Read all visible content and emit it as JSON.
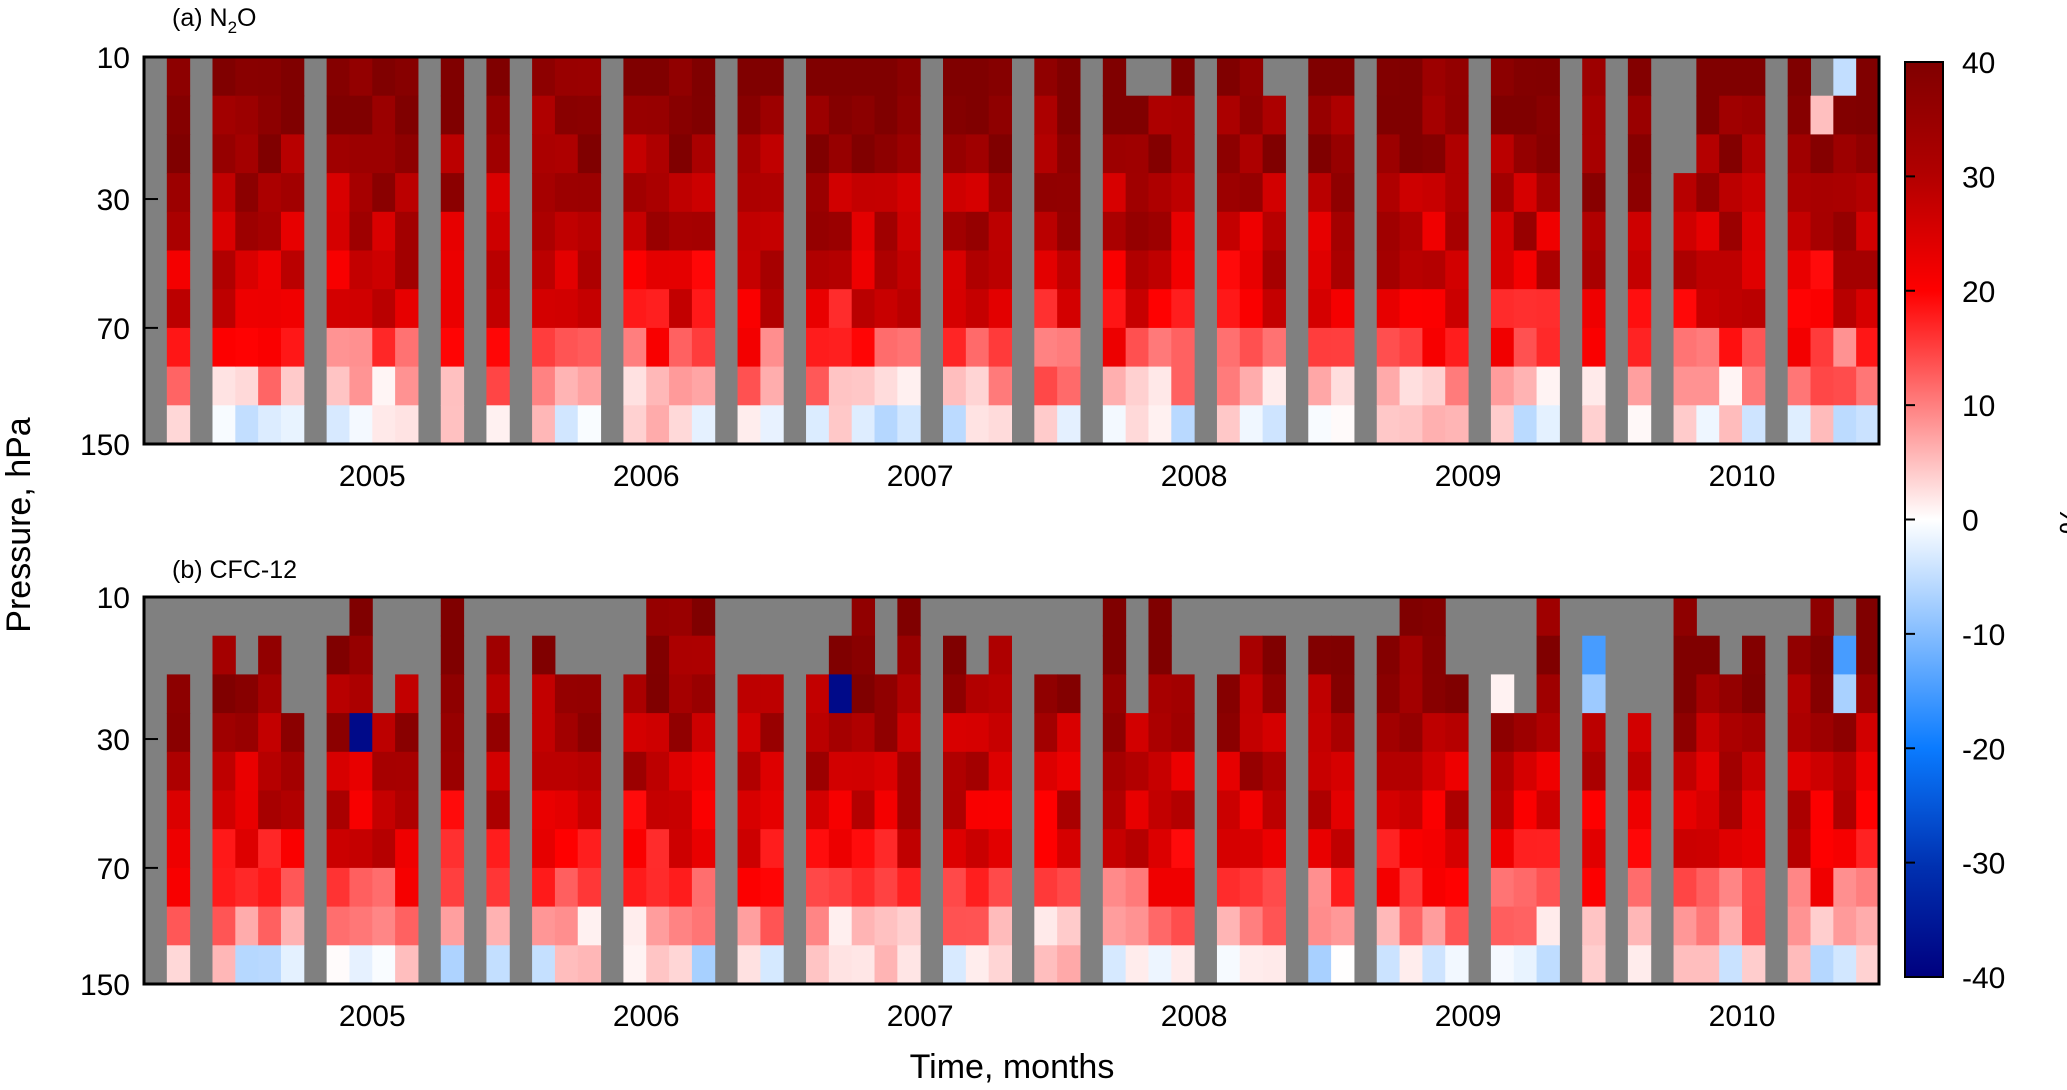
{
  "figure": {
    "y_axis_label": "Pressure, hPa",
    "x_axis_label": "Time, months",
    "colorbar": {
      "unit_label": "%",
      "ticks": [
        "40",
        "30",
        "20",
        "10",
        "0",
        "-10",
        "-20",
        "-30",
        "-40"
      ],
      "min": -40,
      "max": 40,
      "colors": {
        "negative_end": "#00007f",
        "mid_negative": "#0a7bff",
        "zero": "#ffffff",
        "mid_positive": "#ff0000",
        "positive_end": "#800000"
      }
    },
    "missing_color": "#808080"
  },
  "chart_data": [
    {
      "type": "heatmap",
      "title": "(a) N2O",
      "title_prefix": "(a) N",
      "title_sub": "2",
      "title_suffix": "O",
      "ylabel": "Pressure, hPa",
      "yticks": [
        "10",
        "30",
        "70",
        "150"
      ],
      "xticks": [
        "2005",
        "2006",
        "2007",
        "2008",
        "2009",
        "2010"
      ],
      "x_start": "2004-09",
      "x_end": "2010-12",
      "y_range_hpa": [
        150,
        10
      ],
      "value_unit": "%",
      "note": "Monthly columns alternate with missing (grey) months; values estimated from colour.",
      "data_months": [
        "2004-10",
        "2004-12",
        "2005-01",
        "2005-02",
        "2005-03",
        "2005-05",
        "2005-06",
        "2005-07",
        "2005-08",
        "2005-10",
        "2005-12",
        "2006-02",
        "2006-03",
        "2006-04",
        "2006-06",
        "2006-07",
        "2006-08",
        "2006-09",
        "2006-11",
        "2006-12",
        "2007-02",
        "2007-03",
        "2007-04",
        "2007-05",
        "2007-06",
        "2007-08",
        "2007-09",
        "2007-10",
        "2007-12",
        "2008-01",
        "2008-03",
        "2008-04",
        "2008-05",
        "2008-06",
        "2008-08",
        "2008-09",
        "2008-10",
        "2008-12",
        "2009-01",
        "2009-03",
        "2009-04",
        "2009-05",
        "2009-06",
        "2009-08",
        "2009-09",
        "2009-10",
        "2009-12",
        "2010-02",
        "2010-04",
        "2010-05",
        "2010-06",
        "2010-07",
        "2010-09",
        "2010-10",
        "2010-11",
        "2010-12"
      ]
    },
    {
      "type": "heatmap",
      "title": "(b) CFC-12",
      "ylabel": "Pressure, hPa",
      "yticks": [
        "10",
        "30",
        "70",
        "150"
      ],
      "xticks": [
        "2005",
        "2006",
        "2007",
        "2008",
        "2009",
        "2010"
      ],
      "x_start": "2004-09",
      "x_end": "2010-12",
      "y_range_hpa": [
        150,
        10
      ],
      "value_unit": "%",
      "note": "Monthly columns alternate with missing (grey) months; upper levels partially missing; a few negative cells near 10-30 hPa.",
      "data_months": [
        "2004-10",
        "2004-12",
        "2005-01",
        "2005-02",
        "2005-03",
        "2005-05",
        "2005-06",
        "2005-07",
        "2005-08",
        "2005-10",
        "2005-12",
        "2006-02",
        "2006-03",
        "2006-04",
        "2006-06",
        "2006-07",
        "2006-08",
        "2006-09",
        "2006-11",
        "2006-12",
        "2007-02",
        "2007-03",
        "2007-04",
        "2007-05",
        "2007-06",
        "2007-08",
        "2007-09",
        "2007-10",
        "2007-12",
        "2008-01",
        "2008-03",
        "2008-04",
        "2008-05",
        "2008-06",
        "2008-08",
        "2008-09",
        "2008-10",
        "2008-12",
        "2009-01",
        "2009-03",
        "2009-04",
        "2009-05",
        "2009-06",
        "2009-08",
        "2009-09",
        "2009-10",
        "2009-12",
        "2010-02",
        "2010-04",
        "2010-05",
        "2010-06",
        "2010-07",
        "2010-09",
        "2010-10",
        "2010-11",
        "2010-12"
      ]
    }
  ]
}
